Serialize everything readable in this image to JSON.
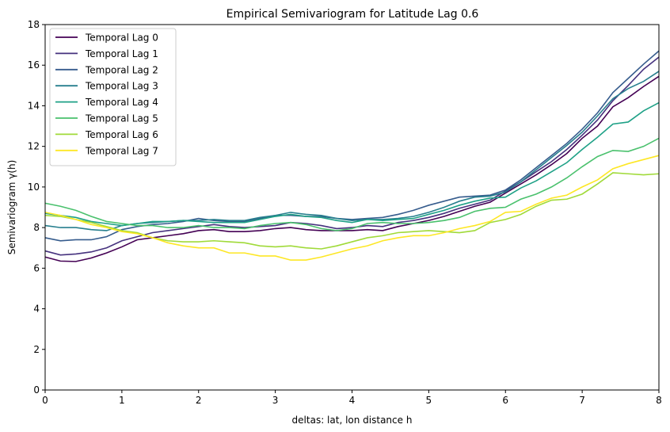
{
  "chart_data": {
    "type": "line",
    "title": "Empirical Semivariogram for Latitude Lag 0.6",
    "xlabel": "deltas: lat, lon distance h",
    "ylabel": "Semivariogram γ(h)",
    "xlim": [
      0,
      8
    ],
    "ylim": [
      0,
      18
    ],
    "xticks": [
      "0",
      "1",
      "2",
      "3",
      "4",
      "5",
      "6",
      "7",
      "8"
    ],
    "yticks": [
      "0",
      "2",
      "4",
      "6",
      "8",
      "10",
      "12",
      "14",
      "16",
      "18"
    ],
    "grid": false,
    "legend_position": "top-left",
    "x": [
      0.0,
      0.2,
      0.4,
      0.6,
      0.8,
      1.0,
      1.2,
      1.4,
      1.6,
      1.8,
      2.0,
      2.2,
      2.4,
      2.6,
      2.8,
      3.0,
      3.2,
      3.4,
      3.6,
      3.8,
      4.0,
      4.2,
      4.4,
      4.6,
      4.8,
      5.0,
      5.2,
      5.4,
      5.6,
      5.8,
      6.0,
      6.2,
      6.4,
      6.6,
      6.8,
      7.0,
      7.2,
      7.4,
      7.6,
      7.8,
      8.0
    ],
    "series": [
      {
        "name": "Temporal Lag 0",
        "color": "#440154",
        "values": [
          6.55,
          6.35,
          6.33,
          6.5,
          6.75,
          7.05,
          7.4,
          7.5,
          7.6,
          7.7,
          7.85,
          7.9,
          7.8,
          7.8,
          7.85,
          7.95,
          8.0,
          7.9,
          7.85,
          7.85,
          7.85,
          7.9,
          7.85,
          8.05,
          8.2,
          8.35,
          8.55,
          8.8,
          9.05,
          9.25,
          9.7,
          10.15,
          10.6,
          11.1,
          11.65,
          12.4,
          13.0,
          13.95,
          14.4,
          14.95,
          15.45
        ]
      },
      {
        "name": "Temporal Lag 1",
        "color": "#46327e",
        "values": [
          6.85,
          6.65,
          6.7,
          6.8,
          7.0,
          7.35,
          7.55,
          7.75,
          7.85,
          7.95,
          8.05,
          8.15,
          8.05,
          8.0,
          8.05,
          8.1,
          8.25,
          8.2,
          8.1,
          7.95,
          8.0,
          8.1,
          8.05,
          8.25,
          8.35,
          8.5,
          8.7,
          8.95,
          9.15,
          9.35,
          9.8,
          10.25,
          10.75,
          11.25,
          11.85,
          12.55,
          13.3,
          14.25,
          15.0,
          15.8,
          16.4
        ]
      },
      {
        "name": "Temporal Lag 2",
        "color": "#365c8d",
        "values": [
          7.5,
          7.35,
          7.4,
          7.4,
          7.55,
          7.9,
          8.05,
          8.15,
          8.2,
          8.3,
          8.45,
          8.35,
          8.3,
          8.3,
          8.45,
          8.6,
          8.6,
          8.55,
          8.55,
          8.45,
          8.4,
          8.45,
          8.5,
          8.65,
          8.85,
          9.1,
          9.3,
          9.5,
          9.55,
          9.6,
          9.85,
          10.35,
          10.95,
          11.55,
          12.15,
          12.85,
          13.65,
          14.65,
          15.35,
          16.05,
          16.7
        ]
      },
      {
        "name": "Temporal Lag 3",
        "color": "#277f8e",
        "values": [
          8.1,
          8.0,
          8.0,
          7.9,
          7.85,
          8.1,
          8.2,
          8.25,
          8.3,
          8.35,
          8.35,
          8.4,
          8.35,
          8.35,
          8.5,
          8.6,
          8.75,
          8.65,
          8.6,
          8.45,
          8.35,
          8.4,
          8.4,
          8.45,
          8.55,
          8.75,
          9.0,
          9.3,
          9.5,
          9.55,
          9.75,
          10.25,
          10.85,
          11.45,
          12.05,
          12.7,
          13.5,
          14.35,
          14.85,
          15.2,
          15.7
        ]
      },
      {
        "name": "Temporal Lag 4",
        "color": "#1fa187",
        "values": [
          8.7,
          8.6,
          8.5,
          8.3,
          8.2,
          8.1,
          8.2,
          8.3,
          8.3,
          8.35,
          8.3,
          8.25,
          8.25,
          8.25,
          8.4,
          8.55,
          8.65,
          8.55,
          8.5,
          8.35,
          8.25,
          8.4,
          8.35,
          8.4,
          8.45,
          8.65,
          8.85,
          9.1,
          9.3,
          9.45,
          9.5,
          9.95,
          10.3,
          10.75,
          11.2,
          11.85,
          12.45,
          13.1,
          13.2,
          13.75,
          14.15
        ]
      },
      {
        "name": "Temporal Lag 5",
        "color": "#4ac16d",
        "values": [
          9.2,
          9.05,
          8.85,
          8.55,
          8.3,
          8.2,
          8.1,
          8.1,
          8.0,
          8.0,
          8.1,
          8.0,
          8.0,
          7.95,
          8.1,
          8.2,
          8.25,
          8.15,
          7.95,
          7.85,
          7.95,
          8.2,
          8.25,
          8.2,
          8.2,
          8.25,
          8.35,
          8.5,
          8.8,
          8.95,
          9.0,
          9.4,
          9.65,
          10.0,
          10.45,
          11.0,
          11.5,
          11.8,
          11.75,
          12.0,
          12.4
        ]
      },
      {
        "name": "Temporal Lag 6",
        "color": "#a0da39",
        "values": [
          8.6,
          8.55,
          8.4,
          8.25,
          8.05,
          7.85,
          7.75,
          7.5,
          7.35,
          7.3,
          7.3,
          7.35,
          7.3,
          7.25,
          7.1,
          7.05,
          7.1,
          7.0,
          6.95,
          7.1,
          7.3,
          7.5,
          7.6,
          7.75,
          7.8,
          7.85,
          7.8,
          7.75,
          7.85,
          8.25,
          8.4,
          8.65,
          9.05,
          9.35,
          9.4,
          9.65,
          10.15,
          10.7,
          10.65,
          10.6,
          10.65
        ]
      },
      {
        "name": "Temporal Lag 7",
        "color": "#fde725",
        "values": [
          8.75,
          8.6,
          8.4,
          8.15,
          8.0,
          7.8,
          7.7,
          7.5,
          7.25,
          7.1,
          7.0,
          7.0,
          6.75,
          6.75,
          6.6,
          6.6,
          6.4,
          6.4,
          6.55,
          6.75,
          6.95,
          7.1,
          7.35,
          7.5,
          7.6,
          7.6,
          7.75,
          7.95,
          8.1,
          8.3,
          8.75,
          8.8,
          9.15,
          9.45,
          9.6,
          10.0,
          10.35,
          10.9,
          11.15,
          11.35,
          11.55
        ]
      }
    ]
  }
}
